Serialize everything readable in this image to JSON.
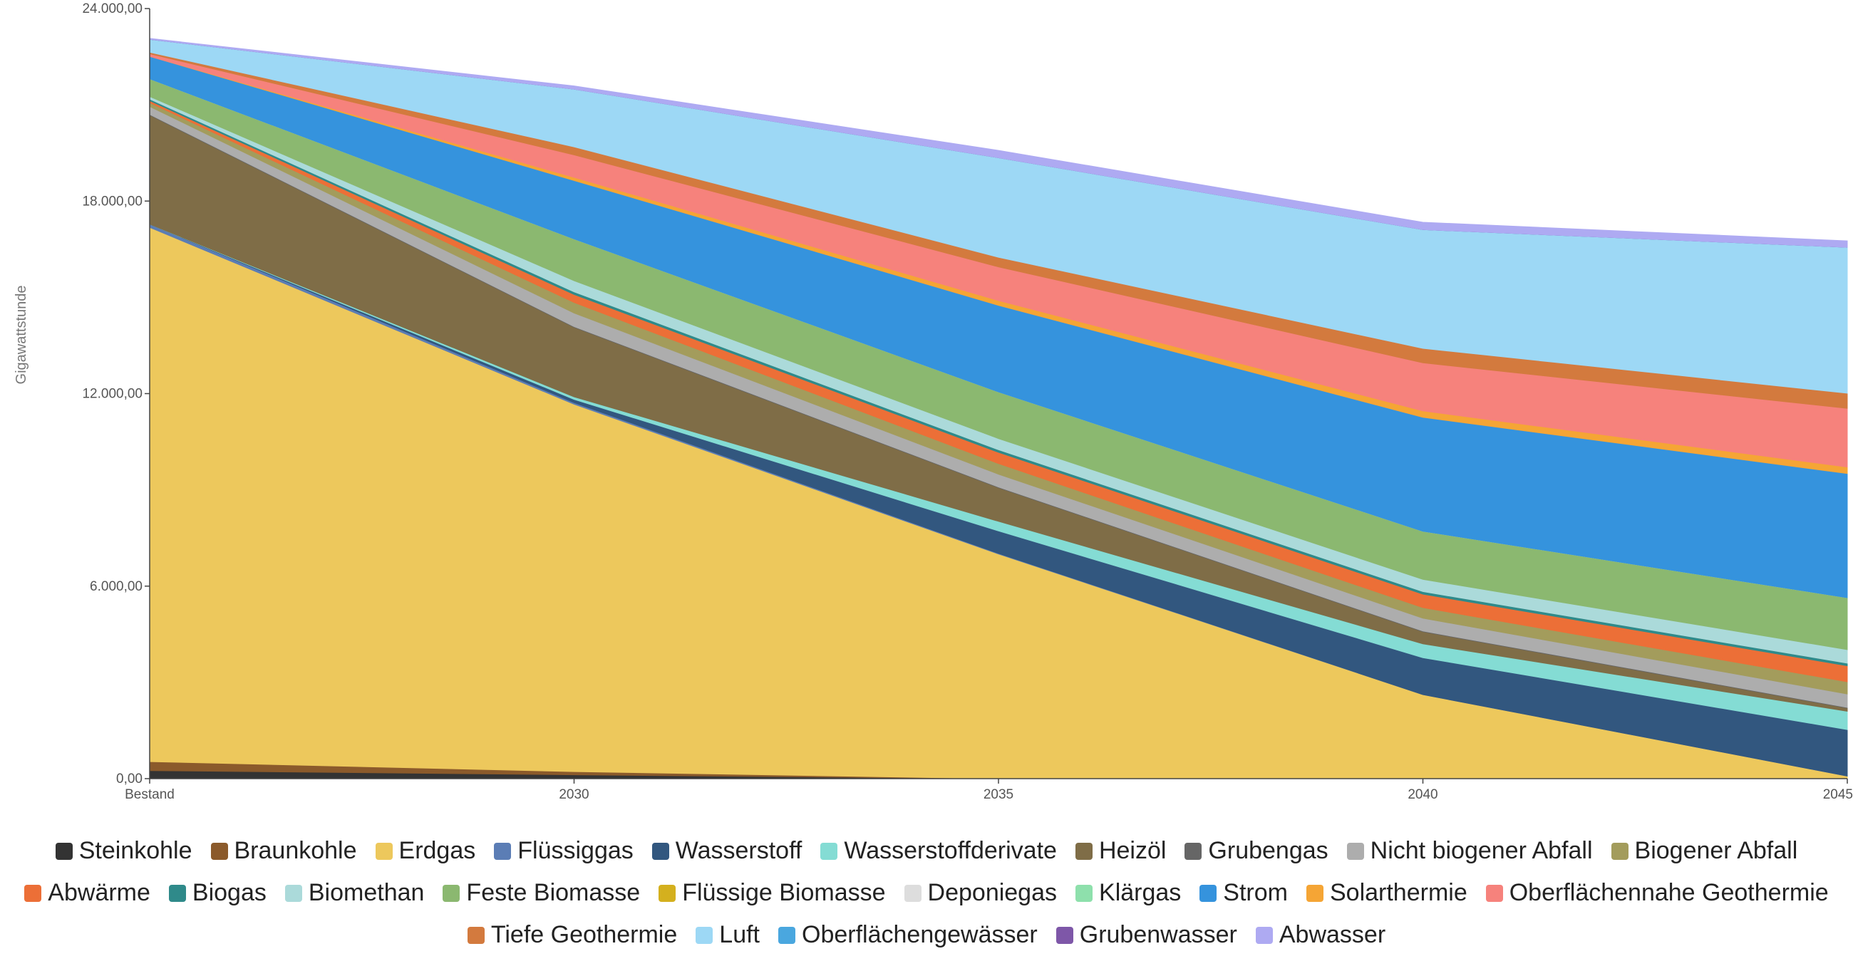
{
  "chart_data": {
    "type": "area",
    "stacked": true,
    "ylabel": "Gigawattstunde",
    "xlabel": "",
    "categories": [
      "Bestand",
      "2030",
      "2035",
      "2040",
      "2045"
    ],
    "y_ticks": [
      "0,00",
      "6.000,00",
      "12.000,00",
      "18.000,00",
      "24.000,00"
    ],
    "ylim": [
      0,
      24000
    ],
    "grid": false,
    "legend_position": "bottom",
    "series": [
      {
        "name": "Steinkohle",
        "color": "#333333",
        "values": [
          250,
          120,
          0,
          0,
          0
        ]
      },
      {
        "name": "Braunkohle",
        "color": "#8B5A2B",
        "values": [
          280,
          100,
          0,
          0,
          0
        ]
      },
      {
        "name": "Erdgas",
        "color": "#EDC85C",
        "values": [
          16650,
          11450,
          7000,
          2620,
          80
        ]
      },
      {
        "name": "Flüssiggas",
        "color": "#5B7DB5",
        "values": [
          100,
          50,
          20,
          0,
          0
        ]
      },
      {
        "name": "Wasserstoff",
        "color": "#32577F",
        "values": [
          0,
          100,
          700,
          1150,
          1450
        ]
      },
      {
        "name": "Wasserstoffderivate",
        "color": "#84DCD4",
        "values": [
          0,
          80,
          300,
          430,
          570
        ]
      },
      {
        "name": "Heizöl",
        "color": "#7F6D47",
        "values": [
          3400,
          2170,
          1050,
          380,
          100
        ]
      },
      {
        "name": "Grubengas",
        "color": "#666666",
        "values": [
          20,
          20,
          20,
          20,
          20
        ]
      },
      {
        "name": "Nicht biogener Abfall",
        "color": "#ADADAD",
        "values": [
          250,
          420,
          400,
          400,
          420
        ]
      },
      {
        "name": "Biogener Abfall",
        "color": "#A39C5C",
        "values": [
          120,
          330,
          330,
          330,
          380
        ]
      },
      {
        "name": "Abwärme",
        "color": "#EC6F37",
        "values": [
          60,
          250,
          350,
          420,
          500
        ]
      },
      {
        "name": "Biogas",
        "color": "#2F8A8A",
        "values": [
          50,
          80,
          80,
          80,
          80
        ]
      },
      {
        "name": "Biomethan",
        "color": "#ABDADA",
        "values": [
          80,
          350,
          350,
          380,
          420
        ]
      },
      {
        "name": "Feste Biomasse",
        "color": "#8BB870",
        "values": [
          550,
          1300,
          1450,
          1500,
          1620
        ]
      },
      {
        "name": "Flüssige Biomasse",
        "color": "#D4B01E",
        "values": [
          0,
          0,
          0,
          0,
          0
        ]
      },
      {
        "name": "Deponiegas",
        "color": "#DDDDDD",
        "values": [
          0,
          0,
          0,
          0,
          0
        ]
      },
      {
        "name": "Klärgas",
        "color": "#8EE0AC",
        "values": [
          0,
          0,
          0,
          0,
          0
        ]
      },
      {
        "name": "Strom",
        "color": "#3593DD",
        "values": [
          700,
          1820,
          2700,
          3550,
          3870
        ]
      },
      {
        "name": "Solarthermie",
        "color": "#F5A535",
        "values": [
          0,
          100,
          150,
          200,
          200
        ]
      },
      {
        "name": "Oberflächennahe Geothermie",
        "color": "#F6827C",
        "values": [
          80,
          700,
          1050,
          1500,
          1830
        ]
      },
      {
        "name": "Tiefe Geothermie",
        "color": "#D37A3E",
        "values": [
          50,
          250,
          300,
          450,
          470
        ]
      },
      {
        "name": "Luft",
        "color": "#9DD8F5",
        "values": [
          400,
          1800,
          3100,
          3700,
          4550
        ]
      },
      {
        "name": "Oberflächengewässer",
        "color": "#4AA7DF",
        "values": [
          0,
          0,
          0,
          0,
          0
        ]
      },
      {
        "name": "Grubenwasser",
        "color": "#7E57A8",
        "values": [
          0,
          0,
          0,
          0,
          0
        ]
      },
      {
        "name": "Abwasser",
        "color": "#AEAAF2",
        "values": [
          30,
          100,
          230,
          230,
          200
        ]
      }
    ]
  },
  "legend": {
    "rows": [
      [
        "Steinkohle",
        "Braunkohle",
        "Erdgas",
        "Flüssiggas",
        "Wasserstoff",
        "Wasserstoffderivate",
        "Heizöl",
        "Grubengas",
        "Nicht biogener Abfall",
        "Biogener Abfall"
      ],
      [
        "Abwärme",
        "Biogas",
        "Biomethan",
        "Feste Biomasse",
        "Flüssige Biomasse",
        "Deponiegas",
        "Klärgas",
        "Strom",
        "Solarthermie",
        "Oberflächennahe Geothermie"
      ],
      [
        "Tiefe Geothermie",
        "Luft",
        "Oberflächengewässer",
        "Grubenwasser",
        "Abwasser"
      ]
    ]
  }
}
